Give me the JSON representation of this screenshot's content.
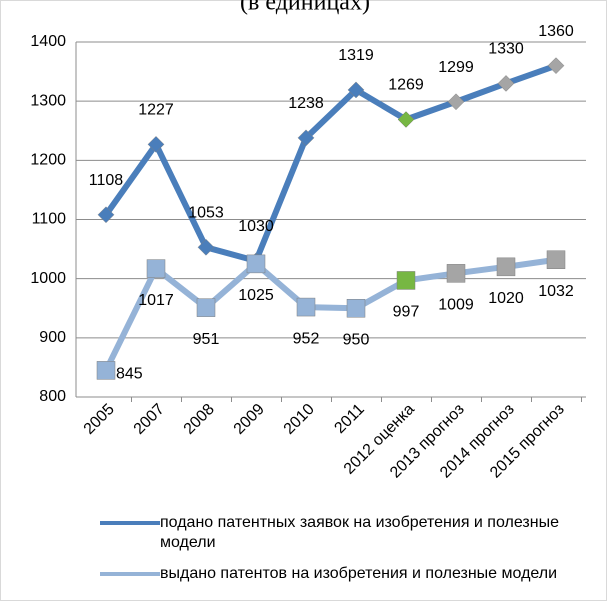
{
  "chart_data": {
    "type": "line",
    "title": "(в единицах)",
    "categories": [
      "2005",
      "2007",
      "2008",
      "2009",
      "2010",
      "2011",
      "2012 оценка",
      "2013 прогноз",
      "2014 прогноз",
      "2015 прогноз"
    ],
    "series": [
      {
        "name": "подано патентных заявок на изобретения и полезные модели",
        "color": "#4a7ebb",
        "marker": "diamond",
        "values": [
          1108,
          1227,
          1053,
          1030,
          1238,
          1319,
          1269,
          1299,
          1330,
          1360
        ],
        "point_colors": [
          "#4a7ebb",
          "#4a7ebb",
          "#4a7ebb",
          "#4a7ebb",
          "#4a7ebb",
          "#4a7ebb",
          "#77b743",
          "#a5a5a5",
          "#a5a5a5",
          "#a5a5a5"
        ]
      },
      {
        "name": "выдано патентов на изобретения и полезные модели",
        "color": "#95b3d7",
        "marker": "square",
        "values": [
          845,
          1017,
          951,
          1025,
          952,
          950,
          997,
          1009,
          1020,
          1032
        ],
        "point_colors": [
          "#95b3d7",
          "#95b3d7",
          "#95b3d7",
          "#95b3d7",
          "#95b3d7",
          "#95b3d7",
          "#77b743",
          "#a5a5a5",
          "#a5a5a5",
          "#a5a5a5"
        ]
      }
    ],
    "ylim": [
      800,
      1400
    ],
    "yticks": [
      800,
      900,
      1000,
      1100,
      1200,
      1300,
      1400
    ],
    "grid": true,
    "legend": "bottom"
  }
}
